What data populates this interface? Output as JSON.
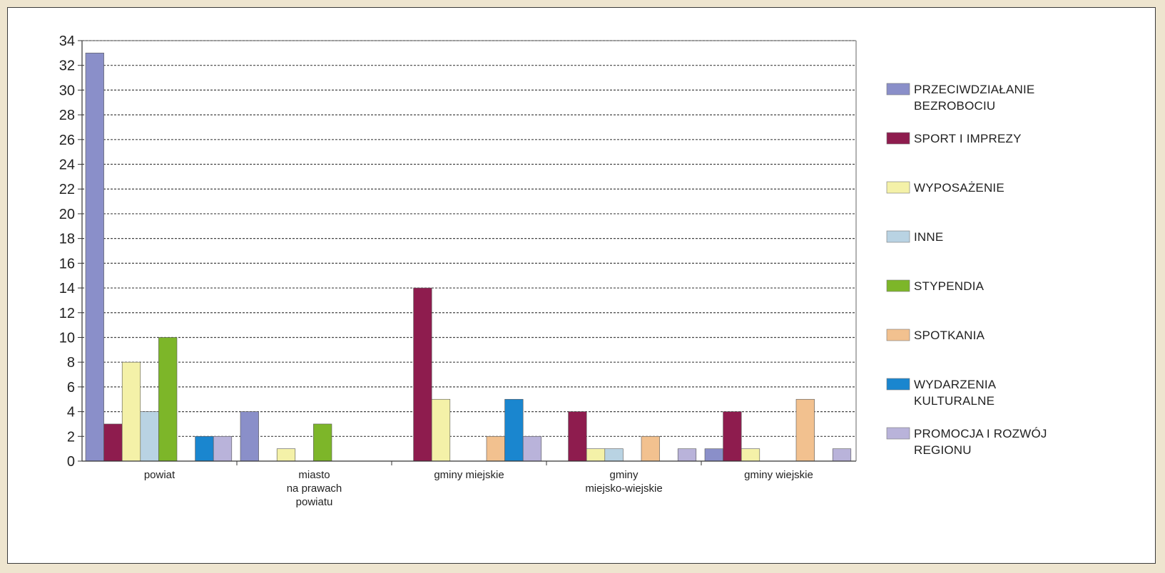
{
  "chart_data": {
    "type": "bar",
    "title": "",
    "xlabel": "",
    "ylabel": "",
    "ylim": [
      0,
      34
    ],
    "y_ticks": [
      0,
      2,
      4,
      6,
      8,
      10,
      12,
      14,
      16,
      18,
      20,
      22,
      24,
      26,
      28,
      30,
      32,
      34
    ],
    "grid": "dashed horizontal",
    "legend_position": "right",
    "categories": [
      [
        "powiat"
      ],
      [
        "miasto",
        "na prawach",
        "powiatu"
      ],
      [
        "gminy miejskie"
      ],
      [
        "gminy",
        "miejsko-wiejskie"
      ],
      [
        "gminy wiejskie"
      ]
    ],
    "series": [
      {
        "name": [
          "PRZECIWDZIAŁANIE",
          "BEZROBOCIU"
        ],
        "color": "#8a8fc9",
        "values": [
          33,
          4,
          0,
          0,
          1
        ]
      },
      {
        "name": [
          "SPORT I IMPREZY"
        ],
        "color": "#8e1c4e",
        "values": [
          3,
          0,
          14,
          4,
          4
        ]
      },
      {
        "name": [
          "WYPOSAŻENIE"
        ],
        "color": "#f4f1a8",
        "values": [
          8,
          1,
          5,
          1,
          1
        ]
      },
      {
        "name": [
          "INNE"
        ],
        "color": "#b9d3e3",
        "values": [
          4,
          0,
          0,
          1,
          0
        ]
      },
      {
        "name": [
          "STYPENDIA"
        ],
        "color": "#7db629",
        "values": [
          10,
          3,
          0,
          0,
          0
        ]
      },
      {
        "name": [
          "SPOTKANIA"
        ],
        "color": "#f2c18f",
        "values": [
          0,
          0,
          2,
          2,
          5
        ]
      },
      {
        "name": [
          "WYDARZENIA",
          "KULTURALNE"
        ],
        "color": "#1a86cf",
        "values": [
          2,
          0,
          5,
          0,
          0
        ]
      },
      {
        "name": [
          "PROMOCJA I ROZWÓJ",
          "REGIONU"
        ],
        "color": "#b9b3da",
        "values": [
          2,
          0,
          2,
          1,
          1
        ]
      }
    ]
  }
}
